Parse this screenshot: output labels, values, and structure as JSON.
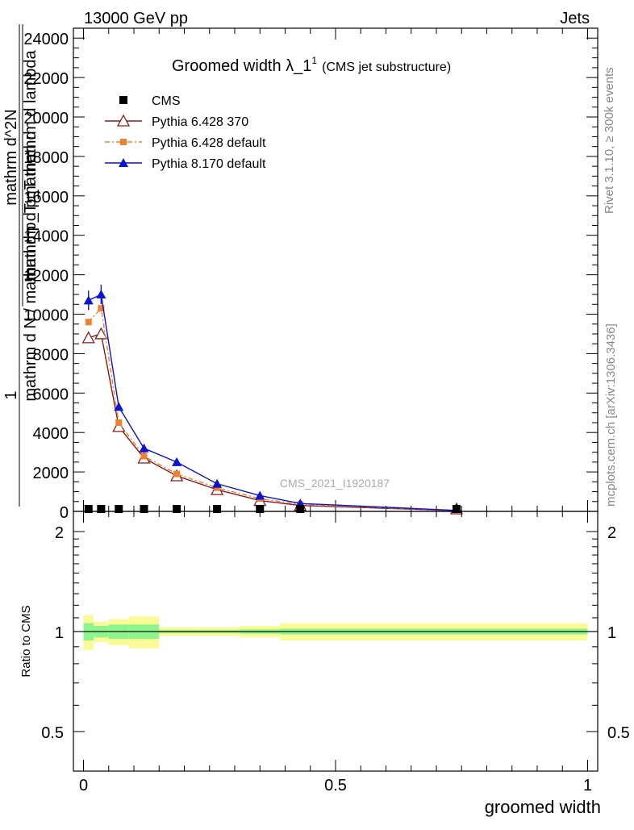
{
  "header": {
    "left": "13000 GeV pp",
    "right": "Jets",
    "title": "Groomed width λ_1",
    "title_sup": "1",
    "title_suffix": "(CMS jet substructure)",
    "side_top": "Rivet 3.1.10, ≥ 300k events",
    "side_bottom": "mcplots.cern.ch [arXiv:1306.3436]",
    "watermark": "CMS_2021_I1920187"
  },
  "colors": {
    "cms": "#000000",
    "p6_370": "#8b1a1a",
    "p6_default": "#f07f2e",
    "p8_default": "#0a14d2",
    "band_inner": "#8ef58e",
    "band_outer": "#fafa96"
  },
  "chart_data": {
    "type": "line",
    "xlabel": "groomed width",
    "ylabel_parts": [
      "1",
      "mathrm d N / mathrm d p_T mathrm d",
      "mathrm d^2N",
      "mathrm d p_T mathrm d lambda"
    ],
    "ratio_ylabel": "Ratio to CMS",
    "xlim": [
      -0.02,
      1.02
    ],
    "ylim": [
      0,
      24500
    ],
    "ratio_ylim": [
      0.38,
      2.3
    ],
    "x_ticks": [
      "0",
      "0.5",
      "1"
    ],
    "y_ticks": [
      "0",
      "2000",
      "4000",
      "6000",
      "8000",
      "10000",
      "12000",
      "14000",
      "16000",
      "18000",
      "20000",
      "22000",
      "24000"
    ],
    "ratio_ticks": [
      "0.5",
      "1",
      "2"
    ],
    "x": [
      0.01,
      0.035,
      0.07,
      0.12,
      0.185,
      0.265,
      0.35,
      0.43,
      0.74
    ],
    "series": [
      {
        "name": "CMS",
        "marker": "square",
        "values": [
          0,
          0,
          0,
          0,
          0,
          0,
          0,
          0,
          0
        ]
      },
      {
        "name": "Pythia 6.428 370",
        "marker": "triangle-open",
        "values": [
          8800,
          9000,
          4300,
          2700,
          1800,
          1100,
          550,
          300,
          40
        ]
      },
      {
        "name": "Pythia 6.428 default",
        "marker": "square-small",
        "values": [
          9600,
          10300,
          4500,
          2800,
          1900,
          1200,
          650,
          350,
          45
        ]
      },
      {
        "name": "Pythia 8.170 default",
        "marker": "triangle",
        "values": [
          10700,
          11000,
          5300,
          3200,
          2500,
          1400,
          800,
          400,
          50
        ]
      }
    ],
    "ratio_bands": {
      "x_edges": [
        0.0,
        0.02,
        0.05,
        0.09,
        0.15,
        0.23,
        0.31,
        0.39,
        0.47,
        1.0
      ],
      "inner": [
        0.06,
        0.04,
        0.05,
        0.05,
        0.01,
        0.01,
        0.015,
        0.02,
        0.02
      ],
      "outer": [
        0.12,
        0.07,
        0.09,
        0.11,
        0.03,
        0.03,
        0.04,
        0.06,
        0.06
      ]
    }
  }
}
